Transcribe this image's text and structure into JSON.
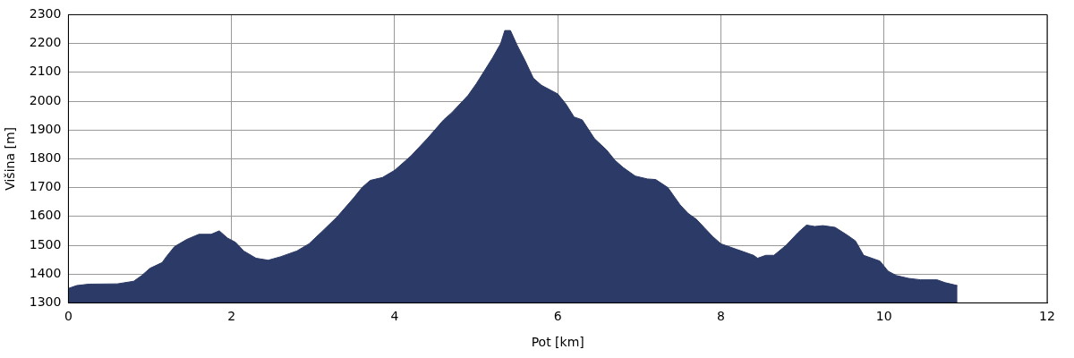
{
  "chart_data": {
    "type": "area",
    "xlabel": "Pot [km]",
    "ylabel": "Višina [m]",
    "x": [
      0,
      0.1,
      0.25,
      0.6,
      0.8,
      0.9,
      1.0,
      1.15,
      1.2,
      1.3,
      1.45,
      1.6,
      1.75,
      1.85,
      1.95,
      2.05,
      2.15,
      2.3,
      2.45,
      2.6,
      2.8,
      2.95,
      3.1,
      3.3,
      3.5,
      3.6,
      3.7,
      3.85,
      4.0,
      4.2,
      4.4,
      4.6,
      4.7,
      4.9,
      5.0,
      5.1,
      5.2,
      5.3,
      5.35,
      5.42,
      5.5,
      5.6,
      5.7,
      5.8,
      6.0,
      6.1,
      6.2,
      6.3,
      6.45,
      6.6,
      6.7,
      6.8,
      6.95,
      7.1,
      7.2,
      7.35,
      7.5,
      7.6,
      7.7,
      7.8,
      7.9,
      8.0,
      8.2,
      8.4,
      8.45,
      8.55,
      8.65,
      8.8,
      8.95,
      9.05,
      9.15,
      9.25,
      9.4,
      9.55,
      9.65,
      9.75,
      9.85,
      9.95,
      10.05,
      10.15,
      10.3,
      10.45,
      10.65,
      10.75,
      10.9
    ],
    "series": [
      {
        "color": "#2b3a66",
        "values": [
          1350,
          1360,
          1365,
          1366,
          1375,
          1395,
          1420,
          1440,
          1460,
          1495,
          1520,
          1538,
          1538,
          1550,
          1525,
          1510,
          1480,
          1455,
          1448,
          1460,
          1480,
          1505,
          1545,
          1600,
          1665,
          1700,
          1725,
          1735,
          1760,
          1810,
          1870,
          1935,
          1960,
          2020,
          2060,
          2105,
          2150,
          2200,
          2245,
          2245,
          2195,
          2140,
          2080,
          2055,
          2025,
          1990,
          1945,
          1935,
          1870,
          1830,
          1795,
          1770,
          1740,
          1730,
          1728,
          1700,
          1640,
          1610,
          1590,
          1560,
          1530,
          1505,
          1485,
          1465,
          1455,
          1465,
          1465,
          1500,
          1545,
          1570,
          1565,
          1568,
          1562,
          1535,
          1515,
          1465,
          1455,
          1445,
          1410,
          1395,
          1385,
          1380,
          1380,
          1370,
          1360
        ]
      }
    ],
    "xlim": [
      0,
      12
    ],
    "xticks": [
      0,
      2,
      4,
      6,
      8,
      10,
      12
    ],
    "ylim": [
      1300,
      2300
    ],
    "yticks": [
      1300,
      1400,
      1500,
      1600,
      1700,
      1800,
      1900,
      2000,
      2100,
      2200,
      2300
    ],
    "grid": true,
    "legend": false
  }
}
